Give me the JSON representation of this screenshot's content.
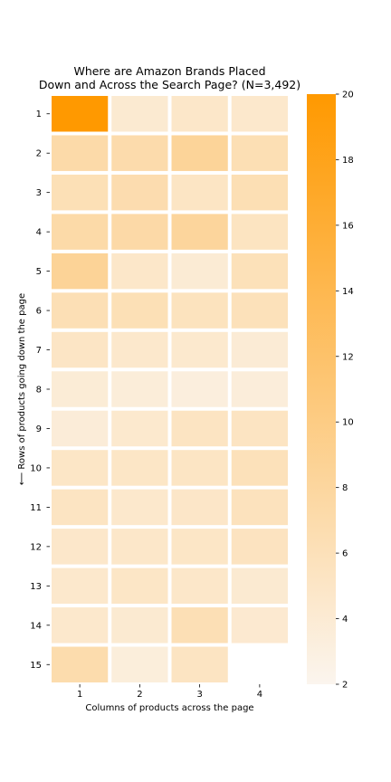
{
  "chart_data": {
    "type": "heatmap",
    "title_line1": "Where are Amazon Brands Placed",
    "title_line2": "Down and Across the Search Page? (N=3,492)",
    "xlabel": "Columns of products across the page",
    "ylabel": "⟵ Rows of products going down the page",
    "x_categories": [
      "1",
      "2",
      "3",
      "4"
    ],
    "y_categories": [
      "1",
      "2",
      "3",
      "4",
      "5",
      "6",
      "7",
      "8",
      "9",
      "10",
      "11",
      "12",
      "13",
      "14",
      "15"
    ],
    "values": [
      [
        20.0,
        4.2,
        4.8,
        4.6
      ],
      [
        7.2,
        7.0,
        8.4,
        6.4
      ],
      [
        6.2,
        6.8,
        5.2,
        6.4
      ],
      [
        7.3,
        7.4,
        8.2,
        5.4
      ],
      [
        8.6,
        4.8,
        4.0,
        6.0
      ],
      [
        6.3,
        6.2,
        5.6,
        5.9
      ],
      [
        5.1,
        4.6,
        4.4,
        3.9
      ],
      [
        3.8,
        3.6,
        3.3,
        3.5
      ],
      [
        3.7,
        4.4,
        5.3,
        5.3
      ],
      [
        5.0,
        5.0,
        5.2,
        5.9
      ],
      [
        5.3,
        4.6,
        4.9,
        5.7
      ],
      [
        4.7,
        4.8,
        5.0,
        5.5
      ],
      [
        4.6,
        5.0,
        4.8,
        4.2
      ],
      [
        4.6,
        4.2,
        6.3,
        4.3
      ],
      [
        6.9,
        3.4,
        5.3,
        null
      ]
    ],
    "colorbar": {
      "min": 2,
      "max": 20,
      "ticks": [
        2,
        4,
        6,
        8,
        10,
        12,
        14,
        16,
        18,
        20
      ],
      "color_low": "#fbf5ee",
      "color_high": "#ff9900"
    },
    "grid": false
  }
}
